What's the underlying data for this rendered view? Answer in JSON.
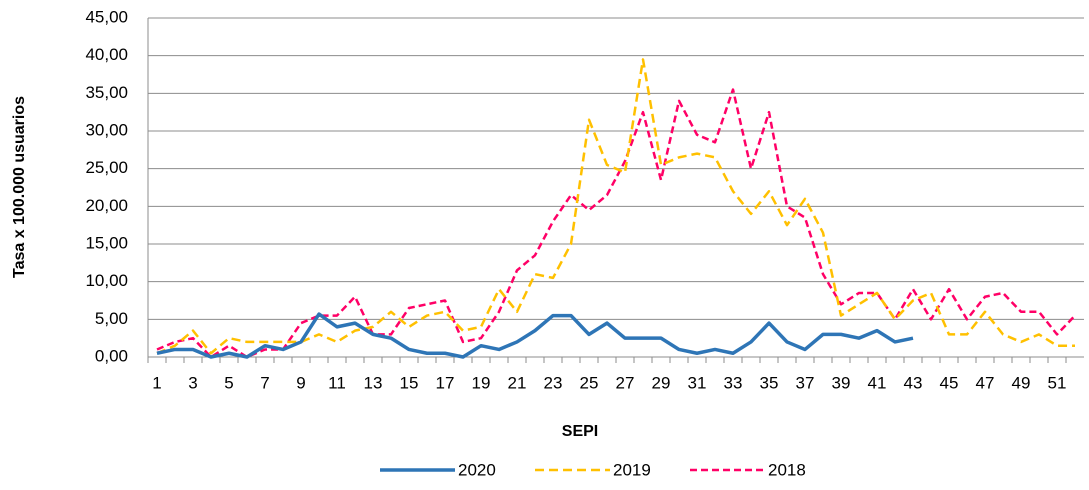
{
  "chart_data": {
    "type": "line",
    "xlabel": "SEPI",
    "ylabel": "Tasa x 100.000 usuarios",
    "categories": [
      "1",
      null,
      "3",
      null,
      "5",
      null,
      "7",
      null,
      "9",
      null,
      "11",
      null,
      "13",
      null,
      "15",
      null,
      "17",
      null,
      "19",
      null,
      "21",
      null,
      "23",
      null,
      "25",
      null,
      "27",
      null,
      "29",
      null,
      "31",
      null,
      "33",
      null,
      "35",
      null,
      "37",
      null,
      "39",
      null,
      "41",
      null,
      "43",
      null,
      "45",
      null,
      "47",
      null,
      "49",
      null,
      "51",
      null
    ],
    "ylim": [
      0,
      45
    ],
    "yticks": [
      {
        "value": 0,
        "label": "0,00"
      },
      {
        "value": 5,
        "label": "5,00"
      },
      {
        "value": 10,
        "label": "10,00"
      },
      {
        "value": 15,
        "label": "15,00"
      },
      {
        "value": 20,
        "label": "20,00"
      },
      {
        "value": 25,
        "label": "25,00"
      },
      {
        "value": 30,
        "label": "30,00"
      },
      {
        "value": 35,
        "label": "35,00"
      },
      {
        "value": 40,
        "label": "40,00"
      },
      {
        "value": 45,
        "label": "45,00"
      }
    ],
    "grid": true,
    "legend": "bottom",
    "series": [
      {
        "name": "2020",
        "color": "#2e75b6",
        "dash": "solid",
        "values": [
          0.5,
          1,
          1,
          0,
          0.5,
          0,
          1.5,
          1,
          2,
          5.7,
          4,
          4.5,
          3,
          2.5,
          1,
          0.5,
          0.5,
          0,
          1.5,
          1,
          2,
          3.5,
          5.5,
          5.5,
          3,
          4.5,
          2.5,
          2.5,
          2.5,
          1,
          0.5,
          1,
          0.5,
          2,
          4.5,
          2,
          1,
          3,
          3,
          2.5,
          3.5,
          2,
          2.5,
          null,
          null,
          null,
          null,
          null,
          null,
          null,
          null,
          null
        ]
      },
      {
        "name": "2019",
        "color": "#ffc000",
        "dash": "dashed",
        "values": [
          0.5,
          1.5,
          3.5,
          0.5,
          2.5,
          2,
          2,
          2,
          2,
          3,
          2,
          3.5,
          4,
          6,
          4,
          5.5,
          6,
          3.5,
          4,
          9,
          6,
          11,
          10.5,
          15,
          31.5,
          25.5,
          24.5,
          39.5,
          25.5,
          26.5,
          27,
          26.5,
          22,
          19,
          22,
          17.5,
          21,
          16.5,
          5.5,
          7,
          8.5,
          5,
          7.5,
          8.5,
          3,
          3,
          6,
          3,
          2,
          3,
          1.5,
          1.5
        ]
      },
      {
        "name": "2018",
        "color": "#ff0066",
        "dash": "dashed",
        "values": [
          1,
          2,
          2.5,
          0,
          1.5,
          0,
          1,
          1,
          4.5,
          5.5,
          5.5,
          8,
          3,
          3,
          6.5,
          7,
          7.5,
          2,
          2.5,
          6,
          11.5,
          13.5,
          18,
          21.5,
          19.5,
          21.5,
          26,
          32.5,
          23.5,
          34,
          29.5,
          28.5,
          35.5,
          25,
          32.5,
          20,
          18.5,
          11,
          7,
          8.5,
          8.5,
          5,
          9,
          5,
          9,
          5,
          8,
          8.5,
          6,
          6,
          3,
          5.5
        ]
      }
    ]
  }
}
